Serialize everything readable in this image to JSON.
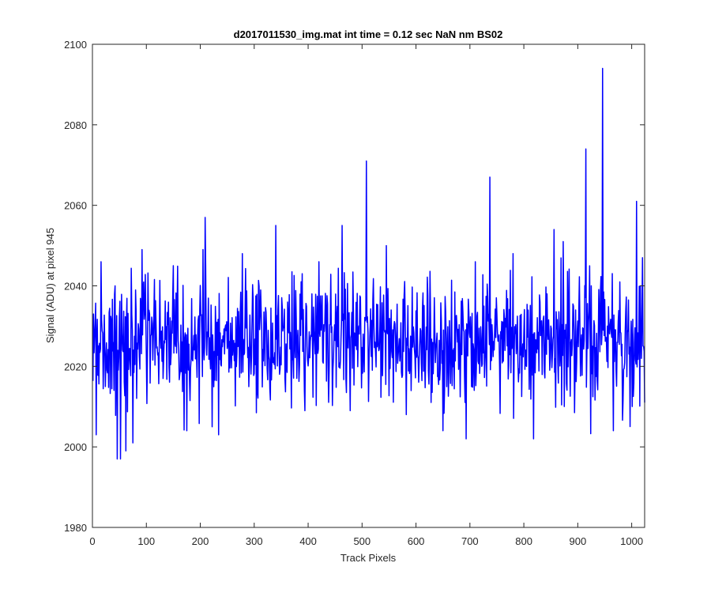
{
  "colors": {
    "series": "#0000ff",
    "axis": "#262626",
    "background": "#ffffff"
  },
  "chart_data": {
    "type": "line",
    "title": "d2017011530_img.mat int time = 0.12 sec  NaN nm BS02",
    "xlabel": "Track Pixels",
    "ylabel": "Signal (ADU) at pixel 945",
    "xlim": [
      0,
      1024
    ],
    "ylim": [
      1980,
      2100
    ],
    "grid": false,
    "box": true,
    "xticks": [
      0,
      100,
      200,
      300,
      400,
      500,
      600,
      700,
      800,
      900,
      1000
    ],
    "yticks": [
      1980,
      2000,
      2020,
      2040,
      2060,
      2080,
      2100
    ],
    "x_start": 1,
    "x_step": 1,
    "n_points": 1024,
    "baseline_mean": 2026,
    "noise_spread": 8,
    "notable_points": [
      {
        "x": 2,
        "y": 2033
      },
      {
        "x": 7,
        "y": 2003
      },
      {
        "x": 16,
        "y": 2046
      },
      {
        "x": 42,
        "y": 2040
      },
      {
        "x": 46,
        "y": 1997
      },
      {
        "x": 52,
        "y": 1997
      },
      {
        "x": 62,
        "y": 1999
      },
      {
        "x": 75,
        "y": 2001
      },
      {
        "x": 92,
        "y": 2049
      },
      {
        "x": 150,
        "y": 2045
      },
      {
        "x": 175,
        "y": 2004
      },
      {
        "x": 205,
        "y": 2049
      },
      {
        "x": 209,
        "y": 2057
      },
      {
        "x": 222,
        "y": 2005
      },
      {
        "x": 278,
        "y": 2048
      },
      {
        "x": 340,
        "y": 2055
      },
      {
        "x": 420,
        "y": 2046
      },
      {
        "x": 463,
        "y": 2055
      },
      {
        "x": 478,
        "y": 2009
      },
      {
        "x": 508,
        "y": 2071
      },
      {
        "x": 545,
        "y": 2050
      },
      {
        "x": 582,
        "y": 2008
      },
      {
        "x": 650,
        "y": 2004
      },
      {
        "x": 693,
        "y": 2002
      },
      {
        "x": 710,
        "y": 2046
      },
      {
        "x": 737,
        "y": 2067
      },
      {
        "x": 780,
        "y": 2048
      },
      {
        "x": 818,
        "y": 2002
      },
      {
        "x": 856,
        "y": 2054
      },
      {
        "x": 873,
        "y": 2051
      },
      {
        "x": 892,
        "y": 2035
      },
      {
        "x": 915,
        "y": 2074
      },
      {
        "x": 925,
        "y": 2040
      },
      {
        "x": 946,
        "y": 2094
      },
      {
        "x": 955,
        "y": 2030
      },
      {
        "x": 966,
        "y": 2004
      },
      {
        "x": 1009,
        "y": 2061
      },
      {
        "x": 1016,
        "y": 2040
      },
      {
        "x": 1020,
        "y": 2047
      },
      {
        "x": 1024,
        "y": 2011
      }
    ]
  }
}
